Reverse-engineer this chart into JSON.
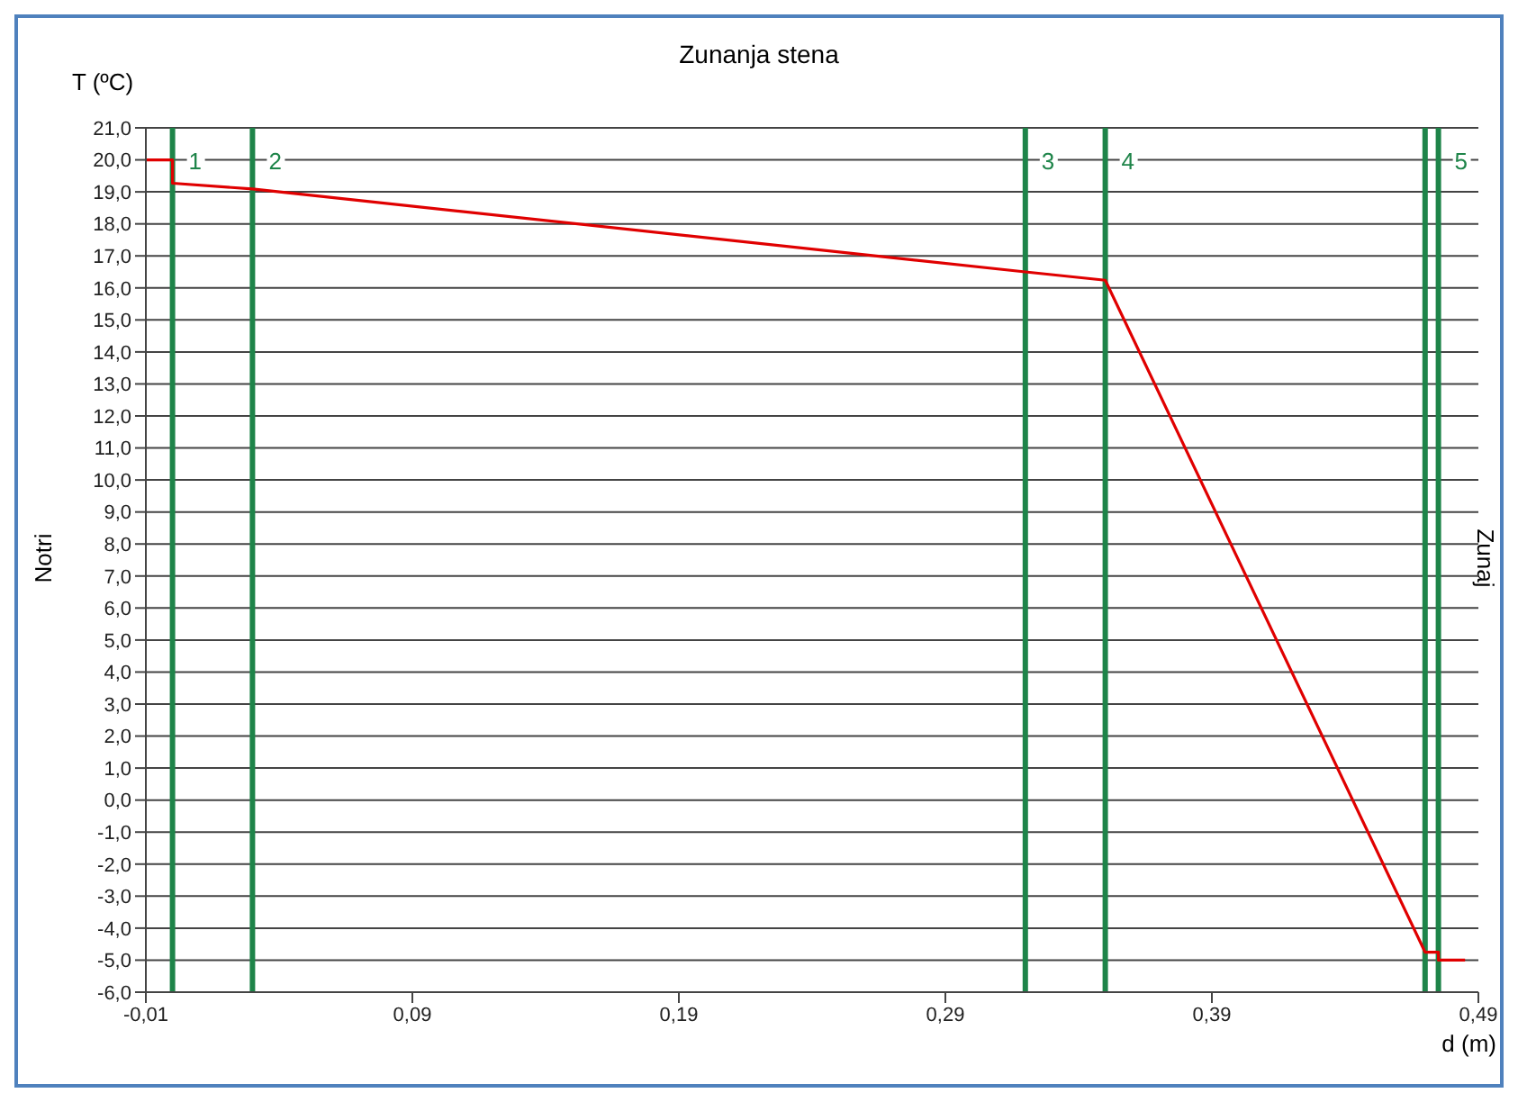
{
  "chart_data": {
    "type": "line",
    "title": "Zunanja stena",
    "xlabel": "d (m)",
    "ylabel": "T (ºC)",
    "annotations": [
      "Notri",
      "Zunaj",
      "1",
      "2",
      "3",
      "4",
      "5"
    ],
    "series": [
      {
        "color": "#e00000",
        "x": [
          -0.01,
          0.0,
          0.0,
          0.03,
          0.32,
          0.35,
          0.47,
          0.475,
          0.475,
          0.485
        ],
        "values": [
          20.0,
          20.0,
          19.27,
          19.09,
          16.5,
          16.24,
          -4.75,
          -4.75,
          -5.0,
          -5.0
        ]
      }
    ],
    "xlim": [
      -0.01,
      0.49
    ],
    "xticks": [
      {
        "value": -0.01,
        "label": "-0,01"
      },
      {
        "value": 0.09,
        "label": "0,09"
      },
      {
        "value": 0.19,
        "label": "0,19"
      },
      {
        "value": 0.29,
        "label": "0,29"
      },
      {
        "value": 0.39,
        "label": "0,39"
      },
      {
        "value": 0.49,
        "label": "0,49"
      }
    ],
    "ylim": [
      -6,
      21
    ],
    "yticks": [
      {
        "value": -6,
        "label": "-6,0"
      },
      {
        "value": -5,
        "label": "-5,0"
      },
      {
        "value": -4,
        "label": "-4,0"
      },
      {
        "value": -3,
        "label": "-3,0"
      },
      {
        "value": -2,
        "label": "-2,0"
      },
      {
        "value": -1,
        "label": "-1,0"
      },
      {
        "value": 0,
        "label": "0,0"
      },
      {
        "value": 1,
        "label": "1,0"
      },
      {
        "value": 2,
        "label": "2,0"
      },
      {
        "value": 3,
        "label": "3,0"
      },
      {
        "value": 4,
        "label": "4,0"
      },
      {
        "value": 5,
        "label": "5,0"
      },
      {
        "value": 6,
        "label": "6,0"
      },
      {
        "value": 7,
        "label": "7,0"
      },
      {
        "value": 8,
        "label": "8,0"
      },
      {
        "value": 9,
        "label": "9,0"
      },
      {
        "value": 10,
        "label": "10,0"
      },
      {
        "value": 11,
        "label": "11,0"
      },
      {
        "value": 12,
        "label": "12,0"
      },
      {
        "value": 13,
        "label": "13,0"
      },
      {
        "value": 14,
        "label": "14,0"
      },
      {
        "value": 15,
        "label": "15,0"
      },
      {
        "value": 16,
        "label": "16,0"
      },
      {
        "value": 17,
        "label": "17,0"
      },
      {
        "value": 18,
        "label": "18,0"
      },
      {
        "value": 19,
        "label": "19,0"
      },
      {
        "value": 20,
        "label": "20,0"
      },
      {
        "value": 21,
        "label": "21,0"
      }
    ],
    "ref_lines": [
      {
        "axis": "x",
        "value": 0.0,
        "color": "#1e8449"
      },
      {
        "axis": "x",
        "value": 0.03,
        "color": "#1e8449"
      },
      {
        "axis": "x",
        "value": 0.32,
        "color": "#1e8449"
      },
      {
        "axis": "x",
        "value": 0.35,
        "color": "#1e8449"
      },
      {
        "axis": "x",
        "value": 0.47,
        "color": "#1e8449"
      },
      {
        "axis": "x",
        "value": 0.475,
        "color": "#1e8449"
      }
    ],
    "grid": "y",
    "legend": false,
    "marker": "none",
    "line_style": "solid"
  }
}
